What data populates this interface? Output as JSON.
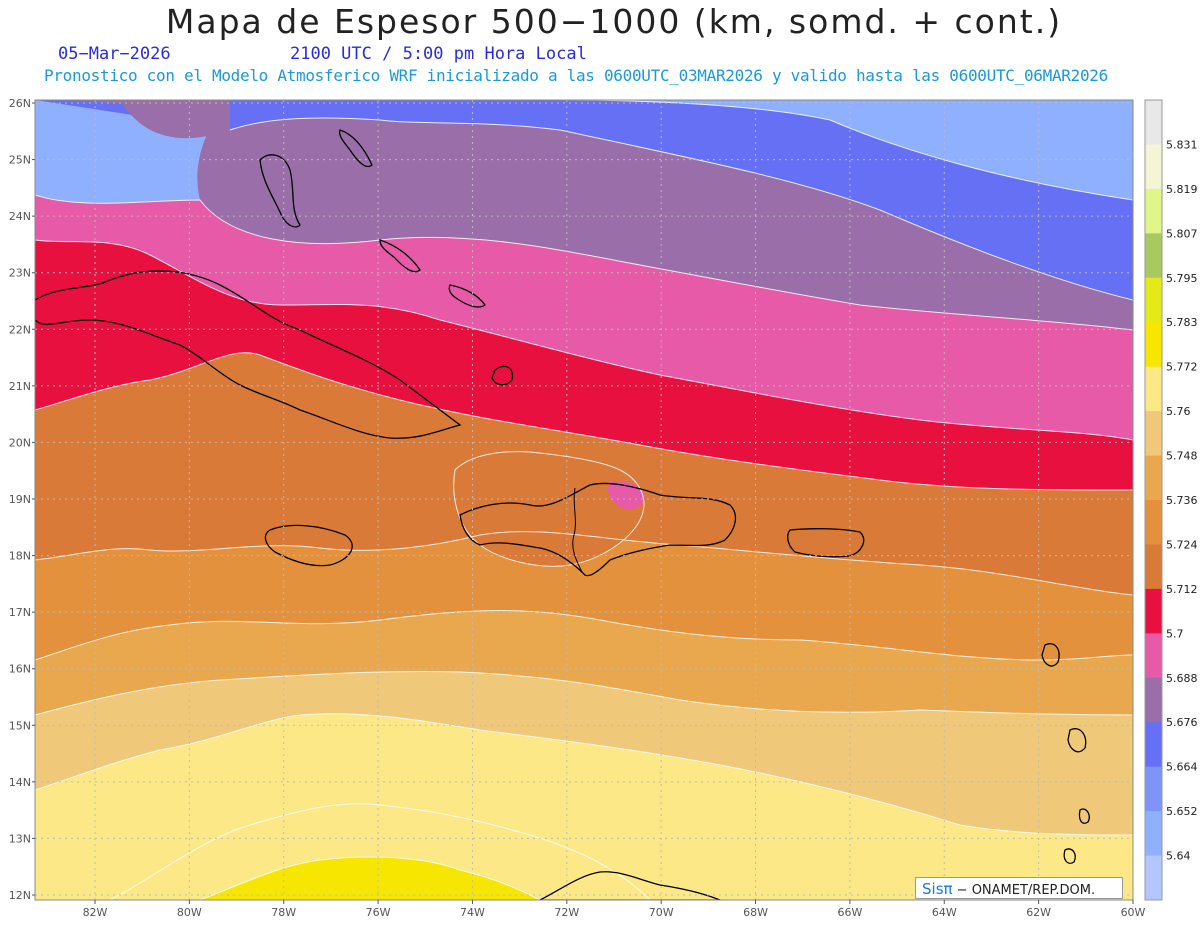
{
  "header": {
    "title": "Mapa de Espesor 500−1000 (km, somd. + cont.)",
    "date": "05−Mar−2026",
    "time": "2100 UTC / 5:00 pm Hora Local",
    "subtitle": "Pronostico con el Modelo Atmosferico WRF inicializado a las 0600UTC_03MAR2026 y valido hasta las  0600UTC_06MAR2026"
  },
  "axes": {
    "lat_labels": [
      "26N",
      "25N",
      "24N",
      "23N",
      "22N",
      "21N",
      "20N",
      "19N",
      "18N",
      "17N",
      "16N",
      "15N",
      "14N",
      "13N",
      "12N"
    ],
    "lon_labels": [
      "82W",
      "80W",
      "78W",
      "76W",
      "74W",
      "72W",
      "70W",
      "68W",
      "66W",
      "64W",
      "62W",
      "60W"
    ]
  },
  "colorbar": {
    "labels": [
      "5.831",
      "5.819",
      "5.807",
      "5.795",
      "5.783",
      "5.772",
      "5.76",
      "5.748",
      "5.736",
      "5.724",
      "5.712",
      "5.7",
      "5.688",
      "5.676",
      "5.664",
      "5.652",
      "5.64"
    ],
    "colors": [
      "#e8e8e8",
      "#f3f5d4",
      "#e2f58a",
      "#a8c860",
      "#e4ea1a",
      "#f7e700",
      "#fde888",
      "#f0c87a",
      "#eaa84e",
      "#e3913c",
      "#da7a38",
      "#e8103e",
      "#e65aa8",
      "#9a6ea8",
      "#6670f4",
      "#7f94f8",
      "#8fb0fe",
      "#b4c6fe"
    ]
  },
  "map": {
    "band_colors": [
      "#8fb0fe",
      "#7f94f8",
      "#6670f4",
      "#9a6ea8",
      "#e65aa8",
      "#e8103e",
      "#da7a38",
      "#e3913c",
      "#eaa84e",
      "#f0c87a",
      "#fde888",
      "#f7e700"
    ],
    "coast_color": "#000000",
    "contour_color": "#ffffff",
    "grid": "dotted"
  },
  "credit": {
    "brand": "Sisπ",
    "text": " − ONAMET/REP.DOM."
  }
}
